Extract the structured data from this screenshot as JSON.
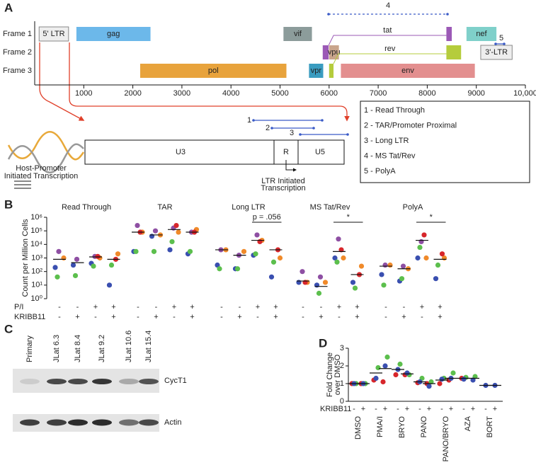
{
  "panel_labels": [
    "A",
    "B",
    "C",
    "D"
  ],
  "genome_map": {
    "frames": [
      "Frame 1",
      "Frame 2",
      "Frame 3"
    ],
    "xlim": [
      0,
      10000
    ],
    "xticks": [
      1000,
      2000,
      3000,
      4000,
      5000,
      6000,
      7000,
      8000,
      9000,
      {
        "value": 10000,
        "label": "10,000"
      }
    ],
    "genes": [
      {
        "label": "5' LTR",
        "color": "#eeeeee",
        "segments": [
          {
            "start": 90,
            "end": 690,
            "frame": 1
          }
        ]
      },
      {
        "label": "gag",
        "color": "#6cb8ea",
        "segments": [
          {
            "start": 850,
            "end": 2360,
            "frame": 1
          }
        ]
      },
      {
        "label": "vif",
        "color": "#8c9c9b",
        "segments": [
          {
            "start": 5070,
            "end": 5650,
            "frame": 1
          }
        ]
      },
      {
        "label": "tat",
        "color": "#9b59b6",
        "segments": [
          {
            "start": 5870,
            "end": 5990,
            "frame": 2
          },
          {
            "start": 8390,
            "end": 8500,
            "frame": 1
          }
        ]
      },
      {
        "label": "nef",
        "color": "#7fd0ca",
        "segments": [
          {
            "start": 8800,
            "end": 9410,
            "frame": 1
          }
        ]
      },
      {
        "label": "vpu",
        "color": "#c9a58c",
        "segments": [
          {
            "start": 6000,
            "end": 6200,
            "frame": 2
          }
        ]
      },
      {
        "label": "rev",
        "color": "#b5cc3c",
        "segments": [
          {
            "start": 6000,
            "end": 6090,
            "frame": 3
          },
          {
            "start": 8390,
            "end": 8690,
            "frame": 2
          }
        ]
      },
      {
        "label": "3'-LTR",
        "color": "#eeeeee",
        "segments": [
          {
            "start": 9090,
            "end": 9730,
            "frame": 2
          }
        ]
      },
      {
        "label": "pol",
        "color": "#e8a33c",
        "segments": [
          {
            "start": 2150,
            "end": 5130,
            "frame": 3
          }
        ]
      },
      {
        "label": "vpr",
        "color": "#3a9cc0",
        "segments": [
          {
            "start": 5590,
            "end": 5880,
            "frame": 3
          }
        ]
      },
      {
        "label": "env",
        "color": "#e38f8f",
        "segments": [
          {
            "start": 6240,
            "end": 8970,
            "frame": 3
          }
        ]
      }
    ],
    "amplicons": [
      "1",
      "2",
      "3",
      "4",
      "5"
    ],
    "amplicon_key": [
      "1 - Read Through",
      "2  - TAR/Promoter Proximal",
      "3 - Long LTR",
      "4 - MS Tat/Rev",
      "5 - PolyA"
    ],
    "ltr_regions": [
      "U3",
      "R",
      "U5"
    ],
    "host_label": [
      "Host-Promoter",
      "Initiated Transcription"
    ],
    "ltr_label": [
      "LTR Initiated",
      "Transcription"
    ]
  },
  "blot": {
    "lanes": [
      "Primary",
      "JLat 6.3",
      "JLat 8.4",
      "JLat 9.2",
      "JLat 10.6",
      "JLat 15.4"
    ],
    "rows": [
      "CycT1",
      "Actin"
    ]
  },
  "chart_data": [
    {
      "type": "strip",
      "y_label": "Count per Million Cells",
      "log_scale": true,
      "ylim": [
        1,
        1000000
      ],
      "yticks": [
        {
          "value": 1,
          "label": "10⁰"
        },
        {
          "value": 10,
          "label": "10¹"
        },
        {
          "value": 100,
          "label": "10²"
        },
        {
          "value": 1000,
          "label": "10³"
        },
        {
          "value": 10000,
          "label": "10⁴"
        },
        {
          "value": 100000,
          "label": "10⁵"
        },
        {
          "value": 1000000,
          "label": "10⁶"
        }
      ],
      "groups": [
        "Read Through",
        "TAR",
        "Long LTR",
        "MS Tat/Rev",
        "PolyA"
      ],
      "conditions": [
        {
          "label": "P/I",
          "values": [
            "-",
            "-",
            "+",
            "+",
            "-",
            "-",
            "+",
            "+",
            "-",
            "-",
            "+",
            "+",
            "-",
            "-",
            "+",
            "+",
            "-",
            "-",
            "+",
            "+"
          ]
        },
        {
          "label": "KRIBB11",
          "values": [
            "-",
            "+",
            "-",
            "+",
            "-",
            "+",
            "-",
            "+",
            "-",
            "+",
            "-",
            "+",
            "-",
            "+",
            "-",
            "+",
            "-",
            "+",
            "-",
            "+"
          ]
        }
      ],
      "series": [
        {
          "color": "#8e4fa3",
          "values": [
            3000,
            800,
            1300,
            null,
            250000,
            100000,
            160000,
            80000,
            4000,
            1600,
            50000,
            null,
            100,
            40,
            25000,
            null,
            300,
            250,
            16000,
            null
          ]
        },
        {
          "color": "#f08a2a",
          "values": [
            1000,
            null,
            1000,
            2000,
            80000,
            50000,
            80000,
            125000,
            4000,
            3000,
            20000,
            1000,
            16,
            16,
            1000,
            250,
            300,
            160,
            1000,
            1000
          ]
        },
        {
          "color": "#3a4fb0",
          "values": [
            200,
            300,
            400,
            10,
            3000,
            40000,
            4000,
            2000,
            300,
            160,
            1600,
            40,
            16,
            10,
            1000,
            16,
            60,
            20,
            1000,
            30
          ]
        },
        {
          "color": "#d7262b",
          "values": [
            null,
            null,
            1300,
            800,
            80000,
            null,
            250000,
            80000,
            null,
            null,
            16000,
            4000,
            16,
            null,
            4000,
            60,
            null,
            null,
            50000,
            2000
          ]
        },
        {
          "color": "#5cbf4d",
          "values": [
            40,
            50,
            250,
            300,
            3000,
            3000,
            16000,
            3000,
            160,
            160,
            2000,
            500,
            null,
            2.5,
            500,
            6,
            10,
            30,
            6000,
            300
          ]
        }
      ],
      "means": [
        800,
        450,
        1200,
        800,
        80000,
        50000,
        125000,
        80000,
        4000,
        1600,
        20000,
        4000,
        20,
        8,
        3000,
        60,
        250,
        160,
        20000,
        800
      ],
      "annotations": [
        {
          "text": "p = .056",
          "over": [
            10,
            11
          ]
        },
        {
          "text": "*",
          "over": [
            14,
            15
          ]
        },
        {
          "text": "*",
          "over": [
            18,
            19
          ]
        }
      ]
    },
    {
      "type": "strip",
      "y_label": [
        "Fold Change",
        "over DMSO"
      ],
      "ylim": [
        0,
        3
      ],
      "yticks": [
        0,
        1,
        2,
        3
      ],
      "categories": [
        "DMSO",
        "PMA/I",
        "BRYO",
        "PANO",
        "PANO/BRYO",
        "AZA",
        "BORT"
      ],
      "conditions": [
        {
          "label": "KRIBB11",
          "values": [
            "-",
            "+",
            "-",
            "+",
            "-",
            "+",
            "-",
            "+",
            "-",
            "+",
            "-",
            "+",
            "-",
            "+"
          ]
        }
      ],
      "series": [
        {
          "color": "#d7262b",
          "values": [
            1.0,
            1.0,
            1.2,
            1.1,
            1.5,
            1.5,
            1.05,
            1.0,
            1.0,
            1.2,
            1.3,
            null,
            null,
            null
          ]
        },
        {
          "color": "#5cbf4d",
          "values": [
            1.0,
            1.0,
            1.9,
            2.5,
            2.1,
            1.5,
            1.3,
            1.1,
            1.3,
            1.6,
            1.35,
            1.4,
            null,
            null
          ]
        },
        {
          "color": "#3a4fb0",
          "values": [
            1.0,
            1.0,
            1.3,
            2.0,
            1.8,
            1.6,
            1.1,
            0.85,
            1.25,
            1.3,
            1.25,
            1.2,
            0.9,
            0.9
          ]
        }
      ],
      "means": [
        1.0,
        1.0,
        1.6,
        1.85,
        1.8,
        1.55,
        1.1,
        1.0,
        1.2,
        1.3,
        1.3,
        1.3,
        0.9,
        0.9
      ]
    }
  ]
}
